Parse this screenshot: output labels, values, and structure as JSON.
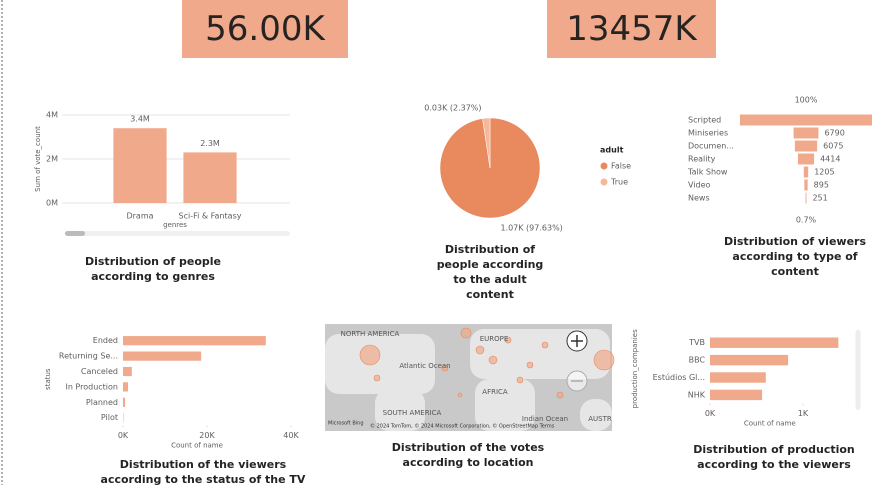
{
  "chart_data": [
    {
      "type": "card",
      "value": 56000,
      "value_label": "56.00K",
      "color": "#f0a98a"
    },
    {
      "type": "card",
      "value": 13457000,
      "value_label": "13457K",
      "color": "#f0a98a"
    },
    {
      "type": "bar",
      "orientation": "vertical",
      "caption": "Distribution of people according to genres",
      "x_label": "genres",
      "y_label": "Sum of vote_count",
      "categories": [
        "Drama",
        "Sci-Fi & Fantasy"
      ],
      "values": [
        3400000,
        2300000
      ],
      "value_labels": [
        "3.4M",
        "2.3M"
      ],
      "color": "#f0a98a",
      "ylim": [
        0,
        4000000
      ],
      "yticks": [
        {
          "value": 0,
          "label": "0M"
        },
        {
          "value": 2000000,
          "label": "2M"
        },
        {
          "value": 4000000,
          "label": "4M"
        }
      ],
      "grid": true
    },
    {
      "type": "pie",
      "caption": "Distribution of people according to the adult content",
      "legend_title": "adult",
      "categories": [
        "False",
        "True"
      ],
      "values": [
        1070,
        26
      ],
      "value_labels": [
        "1.07K (97.63%)",
        "0.03K (2.37%)"
      ],
      "colors": [
        "#e8895e",
        "#f5b89a"
      ],
      "legend": "right"
    },
    {
      "type": "funnel",
      "caption": "Distribution of viewers according to type of content",
      "categories": [
        "Scripted",
        "Miniseries",
        "Documen...",
        "Reality",
        "Talk Show",
        "Video",
        "News"
      ],
      "values": [
        36000,
        6790,
        6075,
        4414,
        1205,
        895,
        251
      ],
      "value_labels": [
        null,
        "6790",
        "6075",
        "4414",
        "1205",
        "895",
        "251"
      ],
      "top_label": "100%",
      "bottom_label": "0.7%",
      "color": "#f0a98a"
    },
    {
      "type": "bar",
      "orientation": "horizontal",
      "caption": "Distribution of the viewers according to the status of the TV shows",
      "x_label": "Count of name",
      "y_label": "status",
      "categories": [
        "Ended",
        "Returning Se...",
        "Canceled",
        "In Production",
        "Planned",
        "Pilot"
      ],
      "values": [
        34000,
        18600,
        2100,
        1200,
        500,
        100
      ],
      "color": "#f0a98a",
      "xlim": [
        0,
        40000
      ],
      "xticks": [
        {
          "value": 0,
          "label": "0K"
        },
        {
          "value": 20000,
          "label": "20K"
        },
        {
          "value": 40000,
          "label": "40K"
        }
      ]
    },
    {
      "type": "map",
      "caption": "Distribution of the votes according to location",
      "labels": [
        "NORTH AMERICA",
        "Atlantic Ocean",
        "EUROPE",
        "AFRICA",
        "SOUTH AMERICA",
        "Indian Ocean",
        "AUSTR"
      ],
      "provider": "Microsoft Bing",
      "attribution": "© 2024 TomTom, © 2024 Microsoft Corporation, © OpenStreetMap  Terms"
    },
    {
      "type": "bar",
      "orientation": "horizontal",
      "caption": "Distribution of production according to the viewers",
      "x_label": "Count of name",
      "y_label": "production_companies",
      "categories": [
        "TVB",
        "BBC",
        "Estúdios Gl...",
        "NHK"
      ],
      "values": [
        1380,
        840,
        600,
        560
      ],
      "color": "#f0a98a",
      "xlim": [
        0,
        1500
      ],
      "xticks": [
        {
          "value": 0,
          "label": "0K"
        },
        {
          "value": 1000,
          "label": "1K"
        }
      ]
    }
  ]
}
